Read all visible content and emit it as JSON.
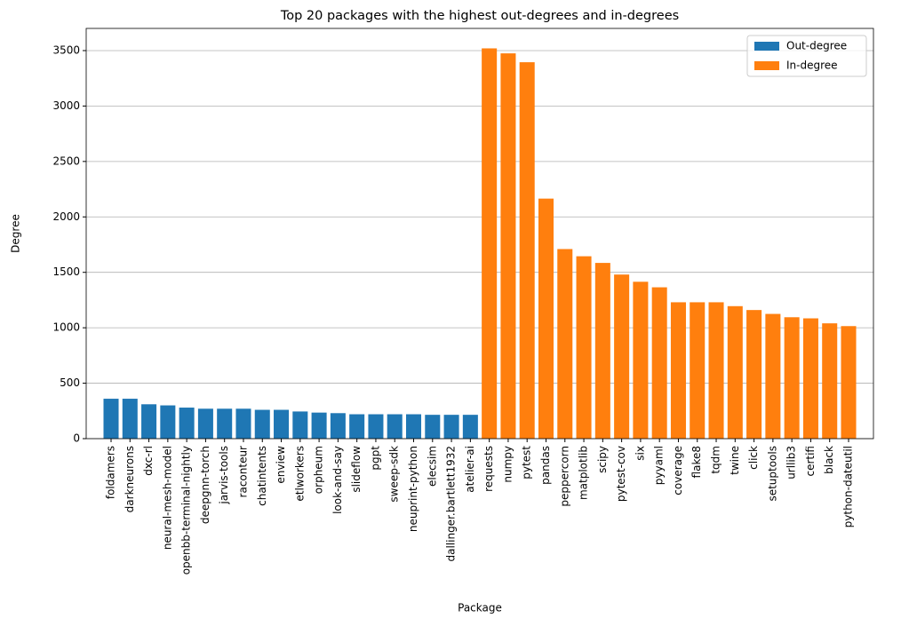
{
  "chart_data": {
    "type": "bar",
    "title": "Top 20 packages with the highest out-degrees and in-degrees",
    "x_label": "Package",
    "y_label": "Degree",
    "categories": [
      "foldamers",
      "darkneurons",
      "dxc-rl",
      "neural-mesh-model",
      "openbb-terminal-nightly",
      "deepgnn-torch",
      "jarvis-tools",
      "raconteur",
      "chatintents",
      "enview",
      "etlworkers",
      "orpheum",
      "look-and-say",
      "slideflow",
      "pgpt",
      "sweep-sdk",
      "neuprint-python",
      "elecsim",
      "dallinger.bartlett1932",
      "atelier-ai",
      "requests",
      "numpy",
      "pytest",
      "pandas",
      "peppercorn",
      "matplotlib",
      "scipy",
      "pytest-cov",
      "six",
      "pyyaml",
      "coverage",
      "flake8",
      "tqdm",
      "twine",
      "click",
      "setuptools",
      "urllib3",
      "certifi",
      "black",
      "python-dateutil"
    ],
    "series": [
      {
        "name": "Out-degree",
        "color": "#1f77b4",
        "values": [
          360,
          360,
          310,
          300,
          280,
          270,
          270,
          270,
          260,
          260,
          245,
          235,
          230,
          220,
          220,
          220,
          220,
          215,
          215,
          215,
          null,
          null,
          null,
          null,
          null,
          null,
          null,
          null,
          null,
          null,
          null,
          null,
          null,
          null,
          null,
          null,
          null,
          null,
          null,
          null
        ]
      },
      {
        "name": "In-degree",
        "color": "#ff7f0e",
        "values": [
          null,
          null,
          null,
          null,
          null,
          null,
          null,
          null,
          null,
          null,
          null,
          null,
          null,
          null,
          null,
          null,
          null,
          null,
          null,
          null,
          3520,
          3475,
          3395,
          2165,
          1710,
          1645,
          1585,
          1480,
          1415,
          1365,
          1230,
          1230,
          1230,
          1195,
          1160,
          1125,
          1095,
          1085,
          1040,
          1015
        ]
      }
    ],
    "ylim": [
      0,
      3700
    ],
    "yticks": [
      0,
      500,
      1000,
      1500,
      2000,
      2500,
      3000,
      3500
    ],
    "grid": "y",
    "legend": "upper right"
  }
}
